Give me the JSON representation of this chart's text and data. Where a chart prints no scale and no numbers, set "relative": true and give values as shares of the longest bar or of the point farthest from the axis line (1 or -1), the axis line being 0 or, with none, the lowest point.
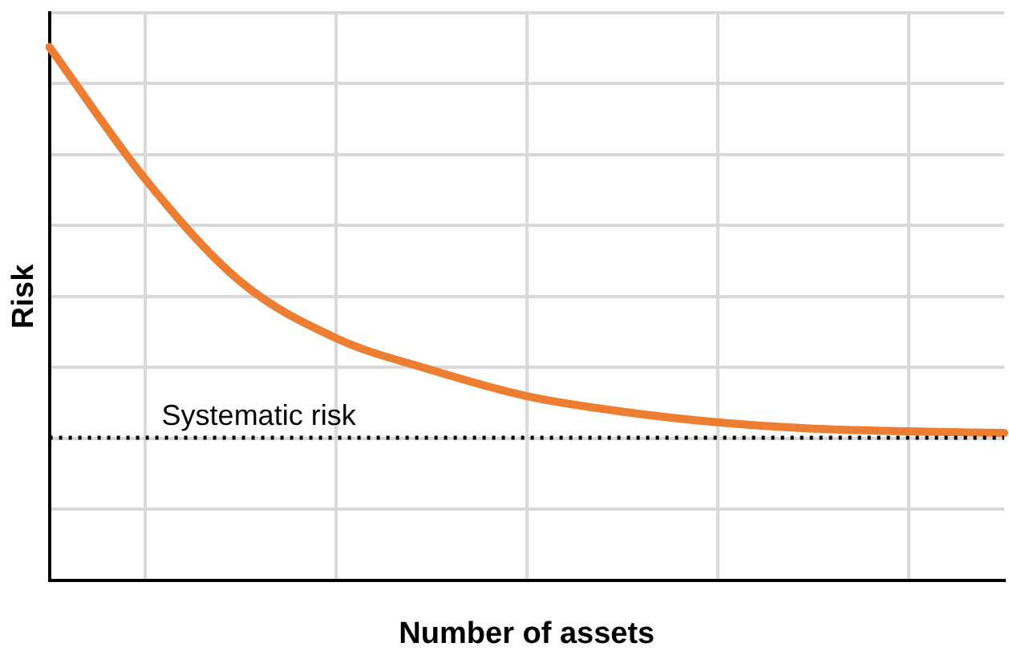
{
  "chart_data": {
    "type": "line",
    "relative": true,
    "xlabel": "Number of assets",
    "ylabel": "Risk",
    "categories": [
      null,
      null,
      null,
      null,
      null,
      null,
      null,
      null,
      null,
      null,
      null
    ],
    "series": [
      {
        "color": "#ed7d31",
        "values": [
          1,
          0.753,
          0.56,
          0.454,
          0.394,
          0.345,
          0.316,
          0.296,
          0.284,
          0.279,
          0.276
        ]
      }
    ],
    "ref_lines": [
      {
        "axis": "y",
        "value": 0.267,
        "label": "Systematic risk",
        "color": "#000000",
        "line_style": "dotted"
      }
    ],
    "grid": true,
    "legend": false,
    "marker": "none",
    "line_style": "solid"
  }
}
